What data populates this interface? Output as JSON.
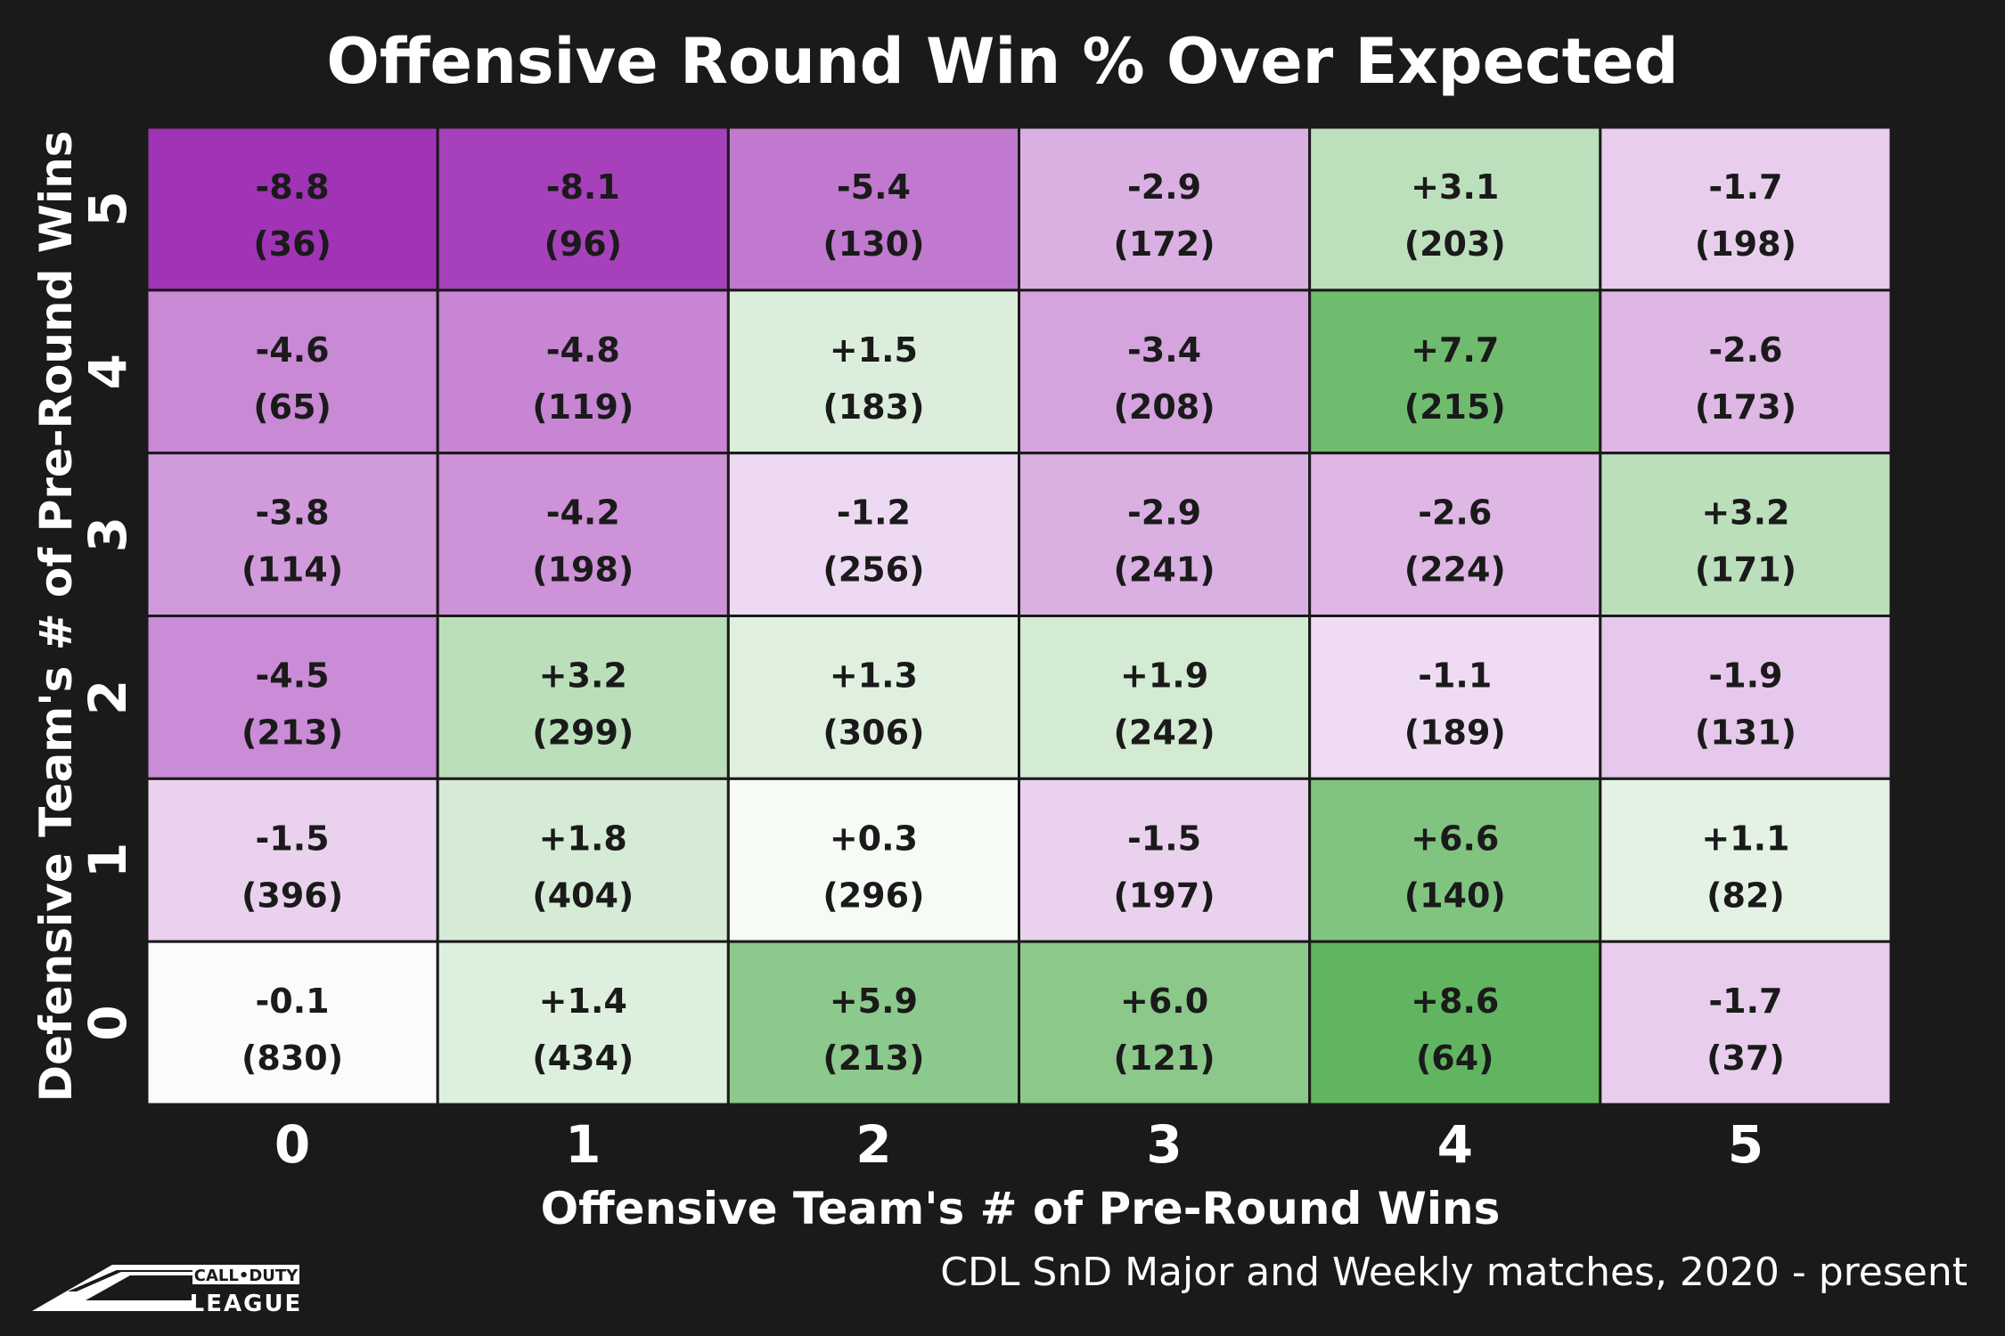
{
  "chart_data": {
    "type": "heatmap",
    "title": "Offensive Round Win % Over Expected",
    "xlabel": "Offensive Team's # of Pre-Round Wins",
    "ylabel": "Defensive Team's # of Pre-Round Wins",
    "x_categories": [
      "0",
      "1",
      "2",
      "3",
      "4",
      "5"
    ],
    "y_categories": [
      "5",
      "4",
      "3",
      "2",
      "1",
      "0"
    ],
    "color_scale": {
      "negative": "#9f2fb5",
      "zero": "#ffffff",
      "positive": "#5bb25a",
      "abs_max": 9
    },
    "rows": [
      {
        "y": "5",
        "values": [
          "-8.8",
          "-8.1",
          "-5.4",
          "-2.9",
          "+3.1",
          "-1.7"
        ],
        "counts": [
          "(36)",
          "(96)",
          "(130)",
          "(172)",
          "(203)",
          "(198)"
        ]
      },
      {
        "y": "4",
        "values": [
          "-4.6",
          "-4.8",
          "+1.5",
          "-3.4",
          "+7.7",
          "-2.6"
        ],
        "counts": [
          "(65)",
          "(119)",
          "(183)",
          "(208)",
          "(215)",
          "(173)"
        ]
      },
      {
        "y": "3",
        "values": [
          "-3.8",
          "-4.2",
          "-1.2",
          "-2.9",
          "-2.6",
          "+3.2"
        ],
        "counts": [
          "(114)",
          "(198)",
          "(256)",
          "(241)",
          "(224)",
          "(171)"
        ]
      },
      {
        "y": "2",
        "values": [
          "-4.5",
          "+3.2",
          "+1.3",
          "+1.9",
          "-1.1",
          "-1.9"
        ],
        "counts": [
          "(213)",
          "(299)",
          "(306)",
          "(242)",
          "(189)",
          "(131)"
        ]
      },
      {
        "y": "1",
        "values": [
          "-1.5",
          "+1.8",
          "+0.3",
          "-1.5",
          "+6.6",
          "+1.1"
        ],
        "counts": [
          "(396)",
          "(404)",
          "(296)",
          "(197)",
          "(140)",
          "(82)"
        ]
      },
      {
        "y": "0",
        "values": [
          "-0.1",
          "+1.4",
          "+5.9",
          "+6.0",
          "+8.6",
          "-1.7"
        ],
        "counts": [
          "(830)",
          "(434)",
          "(213)",
          "(121)",
          "(64)",
          "(37)"
        ]
      }
    ]
  },
  "footnote": "CDL SnD Major and Weekly matches, 2020 - present",
  "logo": {
    "line1": "CALL•DUTY",
    "line2": "LEAGUE"
  }
}
